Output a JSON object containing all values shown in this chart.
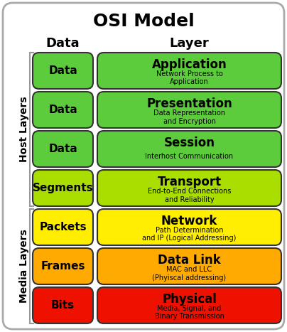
{
  "title": "OSI Model",
  "col_header_data": "Data",
  "col_header_layer": "Layer",
  "layers": [
    {
      "data_label": "Data",
      "layer_name": "Application",
      "layer_desc": "Network Process to\nApplication",
      "data_color": "#5dcc3c",
      "layer_color": "#5dcc3c"
    },
    {
      "data_label": "Data",
      "layer_name": "Presentation",
      "layer_desc": "Data Representation\nand Encryption",
      "data_color": "#5dcc3c",
      "layer_color": "#5dcc3c"
    },
    {
      "data_label": "Data",
      "layer_name": "Session",
      "layer_desc": "Interhost Communication",
      "data_color": "#5dcc3c",
      "layer_color": "#5dcc3c"
    },
    {
      "data_label": "Segments",
      "layer_name": "Transport",
      "layer_desc": "End-to-End Connections\nand Reliability",
      "data_color": "#aadd00",
      "layer_color": "#aadd00"
    },
    {
      "data_label": "Packets",
      "layer_name": "Network",
      "layer_desc": "Path Determination\nand IP (Logical Addressing)",
      "data_color": "#ffee00",
      "layer_color": "#ffee00"
    },
    {
      "data_label": "Frames",
      "layer_name": "Data Link",
      "layer_desc": "MAC and LLC\n(Phyiscal addressing)",
      "data_color": "#ffaa00",
      "layer_color": "#ffaa00"
    },
    {
      "data_label": "Bits",
      "layer_name": "Physical",
      "layer_desc": "Media, Signal, and\nBinary Transmission",
      "data_color": "#ee1100",
      "layer_color": "#ee1100"
    }
  ],
  "host_layers_label": "Host Layers",
  "media_layers_label": "Media Layers",
  "fig_bg": "#ffffff",
  "outer_border_color": "#aaaaaa",
  "box_border_color": "#333333",
  "title_fontsize": 18,
  "header_fontsize": 13,
  "data_label_fontsize": 11,
  "layer_name_fontsize": 12,
  "layer_desc_fontsize": 7,
  "side_label_fontsize": 10
}
